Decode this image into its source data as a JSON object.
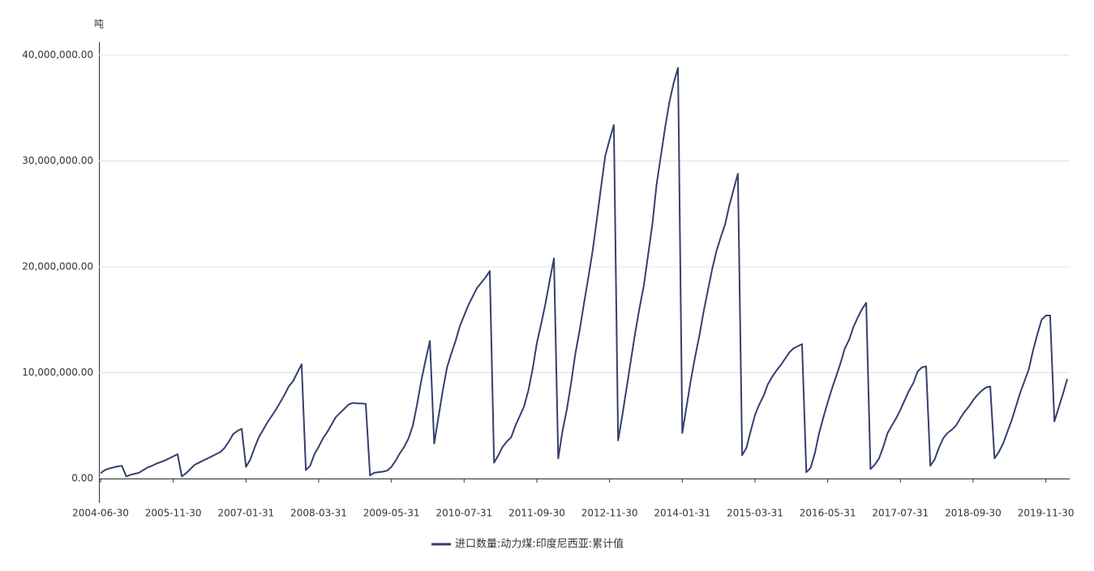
{
  "chart_data": {
    "type": "line",
    "ylabel": "吨",
    "categories": [
      "2004-06-30",
      null,
      null,
      null,
      null,
      null,
      null,
      null,
      null,
      null,
      null,
      null,
      null,
      null,
      null,
      null,
      null,
      "2005-11-30",
      null,
      null,
      null,
      null,
      null,
      null,
      null,
      null,
      null,
      null,
      null,
      null,
      null,
      null,
      null,
      null,
      "2007-01-31",
      null,
      null,
      null,
      null,
      null,
      null,
      null,
      null,
      null,
      null,
      null,
      null,
      null,
      null,
      null,
      null,
      "2008-03-31",
      null,
      null,
      null,
      null,
      null,
      null,
      null,
      null,
      null,
      null,
      null,
      null,
      null,
      null,
      null,
      null,
      "2009-05-31",
      null,
      null,
      null,
      null,
      null,
      null,
      null,
      null,
      null,
      null,
      null,
      null,
      null,
      null,
      null,
      null,
      "2010-07-31",
      null,
      null,
      null,
      null,
      null,
      null,
      null,
      null,
      null,
      null,
      null,
      null,
      null,
      null,
      null,
      null,
      "2011-09-30",
      null,
      null,
      null,
      null,
      null,
      null,
      null,
      null,
      null,
      null,
      null,
      null,
      null,
      null,
      null,
      null,
      "2012-11-30",
      null,
      null,
      null,
      null,
      null,
      null,
      null,
      null,
      null,
      null,
      null,
      null,
      null,
      null,
      null,
      null,
      "2014-01-31",
      null,
      null,
      null,
      null,
      null,
      null,
      null,
      null,
      null,
      null,
      null,
      null,
      null,
      null,
      null,
      null,
      "2015-03-31",
      null,
      null,
      null,
      null,
      null,
      null,
      null,
      null,
      null,
      null,
      null,
      null,
      null,
      null,
      null,
      null,
      "2016-05-31",
      null,
      null,
      null,
      null,
      null,
      null,
      null,
      null,
      null,
      null,
      null,
      null,
      null,
      null,
      null,
      null,
      "2017-07-31",
      null,
      null,
      null,
      null,
      null,
      null,
      null,
      null,
      null,
      null,
      null,
      null,
      null,
      null,
      null,
      null,
      "2018-09-30",
      null,
      null,
      null,
      null,
      null,
      null,
      null,
      null,
      null,
      null,
      null,
      null,
      null,
      null,
      null,
      null,
      "2019-11-30",
      null,
      null,
      null,
      null,
      null
    ],
    "series": [
      {
        "name": "进口数量:动力煤:印度尼西亚:累计值",
        "color": "#34406f",
        "values": [
          500000,
          800000,
          950000,
          1050000,
          1150000,
          1200000,
          200000,
          350000,
          450000,
          550000,
          800000,
          1050000,
          1200000,
          1400000,
          1550000,
          1700000,
          1900000,
          2100000,
          2300000,
          200000,
          500000,
          900000,
          1300000,
          1500000,
          1700000,
          1900000,
          2100000,
          2300000,
          2500000,
          2900000,
          3500000,
          4200000,
          4500000,
          4700000,
          1100000,
          1800000,
          2900000,
          3900000,
          4600000,
          5300000,
          5900000,
          6500000,
          7200000,
          7900000,
          8700000,
          9200000,
          10000000,
          10800000,
          800000,
          1200000,
          2300000,
          3000000,
          3800000,
          4400000,
          5100000,
          5800000,
          6200000,
          6600000,
          7000000,
          7150000,
          7100000,
          7100000,
          7050000,
          300000,
          550000,
          600000,
          650000,
          750000,
          1100000,
          1700000,
          2400000,
          3000000,
          3800000,
          5000000,
          7000000,
          9300000,
          11200000,
          13000000,
          3300000,
          5800000,
          8300000,
          10500000,
          11800000,
          13000000,
          14400000,
          15400000,
          16400000,
          17200000,
          18000000,
          18500000,
          19000000,
          19600000,
          1500000,
          2200000,
          3000000,
          3500000,
          3900000,
          5000000,
          5900000,
          6800000,
          8300000,
          10300000,
          12800000,
          14600000,
          16500000,
          18700000,
          20800000,
          1900000,
          4500000,
          6500000,
          9000000,
          11800000,
          14000000,
          16500000,
          18900000,
          21400000,
          24400000,
          27500000,
          30500000,
          32000000,
          33400000,
          3600000,
          6000000,
          8600000,
          11200000,
          13800000,
          16100000,
          18200000,
          21100000,
          24000000,
          27800000,
          30500000,
          33200000,
          35600000,
          37400000,
          38800000,
          4300000,
          6800000,
          9300000,
          11500000,
          13500000,
          15800000,
          17800000,
          19800000,
          21500000,
          22800000,
          24000000,
          25800000,
          27300000,
          28800000,
          2200000,
          2900000,
          4500000,
          6000000,
          7000000,
          7800000,
          8900000,
          9600000,
          10200000,
          10700000,
          11300000,
          11900000,
          12300000,
          12500000,
          12700000,
          600000,
          1000000,
          2400000,
          4300000,
          5800000,
          7200000,
          8500000,
          9700000,
          10900000,
          12300000,
          13100000,
          14300000,
          15200000,
          16000000,
          16600000,
          900000,
          1300000,
          1900000,
          3000000,
          4300000,
          5000000,
          5700000,
          6500000,
          7400000,
          8300000,
          9000000,
          10100000,
          10500000,
          10600000,
          1200000,
          1800000,
          2900000,
          3800000,
          4300000,
          4600000,
          5000000,
          5700000,
          6300000,
          6800000,
          7400000,
          7900000,
          8300000,
          8600000,
          8700000,
          1900000,
          2500000,
          3300000,
          4400000,
          5500000,
          6800000,
          8100000,
          9200000,
          10300000,
          12100000,
          13600000,
          15000000,
          15400000,
          15400000,
          5400000,
          6700000,
          8000000,
          9400000
        ]
      }
    ],
    "ylim": [
      0,
      40000000
    ],
    "yticks": [
      {
        "value": 0,
        "label": "0.00"
      },
      {
        "value": 10000000,
        "label": "10,000,000.00"
      },
      {
        "value": 20000000,
        "label": "20,000,000.00"
      },
      {
        "value": 30000000,
        "label": "30,000,000.00"
      },
      {
        "value": 40000000,
        "label": "40,000,000.00"
      }
    ],
    "grid": true,
    "legend": "bottom"
  }
}
